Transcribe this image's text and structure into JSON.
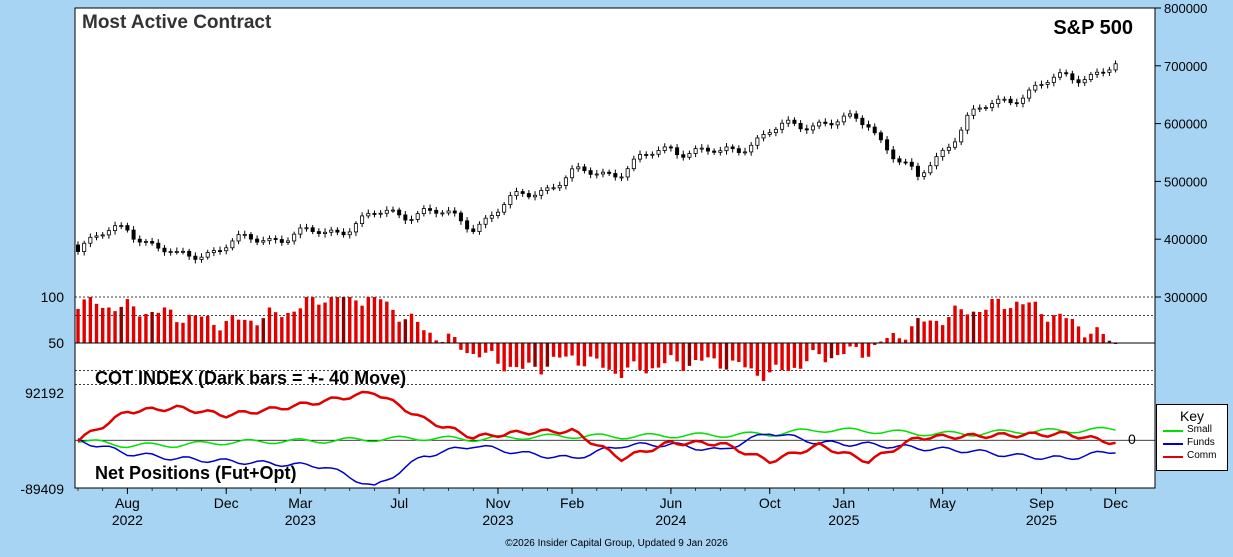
{
  "header": {
    "title": "Most Active Contract",
    "instrument": "S&P 500"
  },
  "right_axis": {
    "ticks": [
      "800000",
      "700000",
      "600000",
      "500000",
      "400000",
      "300000"
    ]
  },
  "cot_panel": {
    "title": "COT INDEX (Dark bars = +- 40 Move)",
    "ticks": [
      "100",
      "50"
    ]
  },
  "net_panel": {
    "title": "Net Positions (Fut+Opt)",
    "top_label": "92192",
    "bottom_label": "-89409",
    "zero_label": "0"
  },
  "x_axis": {
    "months": [
      "Aug",
      "Dec",
      "Mar",
      "Jul",
      "Nov",
      "Feb",
      "Jun",
      "Oct",
      "Jan",
      "May",
      "Sep",
      "Dec"
    ],
    "years": [
      "2022",
      "2023",
      "2023",
      "2024",
      "2025",
      "2025"
    ]
  },
  "key": {
    "title": "Key",
    "items": [
      {
        "label": "Small",
        "color": "#00e000"
      },
      {
        "label": "Funds",
        "color": "#0000cc"
      },
      {
        "label": "Comm",
        "color": "#e00000"
      }
    ]
  },
  "footer": "©2026 Insider Capital Group, Updated 9 Jan 2026",
  "colors": {
    "background": "#a6d4f2",
    "plot": "#ffffff",
    "candle": "#000000",
    "bar": "#e00000",
    "dark_bar": "#880000"
  },
  "chart_data": {
    "type": "line",
    "price": {
      "name": "S&P 500",
      "ylim": [
        300000,
        800000
      ],
      "x": [
        "2022-06",
        "2022-08",
        "2022-10",
        "2022-12",
        "2023-02",
        "2023-04",
        "2023-06",
        "2023-08",
        "2023-10",
        "2023-12",
        "2024-02",
        "2024-04",
        "2024-06",
        "2024-08",
        "2024-10",
        "2024-12",
        "2025-02",
        "2025-04",
        "2025-06",
        "2025-08",
        "2025-10",
        "2025-12"
      ],
      "values": [
        390000,
        420000,
        365000,
        390000,
        405000,
        410000,
        440000,
        450000,
        425000,
        475000,
        510000,
        520000,
        560000,
        545000,
        585000,
        605000,
        600000,
        500000,
        610000,
        650000,
        680000,
        695000
      ]
    },
    "cot_index": {
      "ylim": [
        0,
        100
      ],
      "ticks": [
        100,
        50
      ],
      "x": [
        "2022-06",
        "2022-08",
        "2022-10",
        "2022-12",
        "2023-02",
        "2023-04",
        "2023-06",
        "2023-08",
        "2023-10",
        "2023-12",
        "2024-02",
        "2024-04",
        "2024-06",
        "2024-08",
        "2024-10",
        "2024-12",
        "2025-02",
        "2025-04",
        "2025-06",
        "2025-08",
        "2025-10",
        "2025-12"
      ],
      "values": [
        95,
        88,
        80,
        72,
        80,
        100,
        100,
        65,
        40,
        20,
        35,
        18,
        28,
        30,
        15,
        35,
        42,
        70,
        85,
        95,
        75,
        50
      ]
    },
    "net_positions": {
      "ylim": [
        -89409,
        92192
      ],
      "x": [
        "2022-06",
        "2022-08",
        "2022-10",
        "2022-12",
        "2023-02",
        "2023-04",
        "2023-06",
        "2023-08",
        "2023-10",
        "2023-12",
        "2024-02",
        "2024-04",
        "2024-06",
        "2024-08",
        "2024-10",
        "2024-12",
        "2025-02",
        "2025-04",
        "2025-06",
        "2025-08",
        "2025-10",
        "2025-12"
      ],
      "series": [
        {
          "name": "Small",
          "values": [
            0,
            -10000,
            -9000,
            -4000,
            -2000,
            -1000,
            2000,
            4000,
            2000,
            6000,
            8000,
            7000,
            9000,
            10000,
            12000,
            20000,
            18000,
            13000,
            12000,
            17000,
            18000,
            21000
          ]
        },
        {
          "name": "Funds",
          "values": [
            0,
            -25000,
            -35000,
            -40000,
            -45000,
            -50000,
            -90000,
            -30000,
            -10000,
            -25000,
            -35000,
            -10000,
            -8000,
            -20000,
            15000,
            -5000,
            -8000,
            -15000,
            -20000,
            -30000,
            -35000,
            -20000
          ]
        },
        {
          "name": "Comm",
          "values": [
            0,
            55000,
            62000,
            48000,
            60000,
            75000,
            92000,
            40000,
            6000,
            15000,
            18000,
            -35000,
            -5000,
            -6000,
            -40000,
            -10000,
            -40000,
            5000,
            8000,
            10000,
            12000,
            -5000
          ]
        }
      ]
    }
  }
}
